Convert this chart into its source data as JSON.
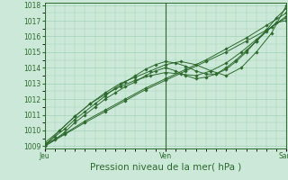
{
  "bg_color": "#cce8d8",
  "grid_color": "#99ccb0",
  "line_color": "#2d6a2d",
  "marker_color": "#2d6a2d",
  "ylabel_min": 1009,
  "ylabel_max": 1018,
  "yticks": [
    1009,
    1010,
    1011,
    1012,
    1013,
    1014,
    1015,
    1016,
    1017,
    1018
  ],
  "xlabel": "Pression niveau de la mer( hPa )",
  "xtick_labels": [
    "Jeu",
    "Ven",
    "Sam"
  ],
  "xtick_positions": [
    0,
    48,
    96
  ],
  "x_total": 96,
  "lines": [
    {
      "x": [
        0,
        8,
        16,
        24,
        32,
        40,
        48,
        56,
        64,
        72,
        80,
        88,
        96
      ],
      "y": [
        1009.0,
        1009.75,
        1010.5,
        1011.2,
        1011.9,
        1012.6,
        1013.2,
        1013.8,
        1014.4,
        1015.0,
        1015.7,
        1016.4,
        1017.2
      ]
    },
    {
      "x": [
        0,
        8,
        16,
        24,
        32,
        40,
        48,
        56,
        64,
        72,
        80,
        88,
        96
      ],
      "y": [
        1009.1,
        1009.8,
        1010.6,
        1011.3,
        1012.0,
        1012.7,
        1013.3,
        1013.9,
        1014.5,
        1015.2,
        1015.9,
        1016.7,
        1017.5
      ]
    },
    {
      "x": [
        0,
        4,
        8,
        12,
        16,
        20,
        24,
        28,
        32,
        36,
        40,
        44,
        48,
        52,
        56,
        60,
        64,
        68,
        72,
        76,
        80,
        84,
        88,
        92,
        96
      ],
      "y": [
        1009.1,
        1009.6,
        1010.1,
        1010.7,
        1011.2,
        1011.7,
        1012.2,
        1012.7,
        1013.1,
        1013.5,
        1013.9,
        1014.2,
        1014.4,
        1014.3,
        1014.1,
        1013.8,
        1013.6,
        1013.6,
        1013.9,
        1014.4,
        1015.0,
        1015.7,
        1016.4,
        1017.2,
        1017.8
      ]
    },
    {
      "x": [
        0,
        4,
        8,
        12,
        16,
        20,
        24,
        28,
        32,
        36,
        40,
        44,
        48,
        52,
        56,
        60,
        64,
        68,
        72,
        76,
        80,
        84,
        88,
        92,
        96
      ],
      "y": [
        1009.0,
        1009.4,
        1009.9,
        1010.5,
        1011.0,
        1011.5,
        1012.0,
        1012.4,
        1012.8,
        1013.1,
        1013.5,
        1013.8,
        1014.0,
        1013.8,
        1013.5,
        1013.3,
        1013.4,
        1013.6,
        1014.0,
        1014.5,
        1015.1,
        1015.7,
        1016.3,
        1016.9,
        1017.0
      ]
    },
    {
      "x": [
        0,
        6,
        12,
        18,
        24,
        30,
        36,
        42,
        48,
        54,
        60,
        66,
        72,
        78,
        84,
        90,
        96
      ],
      "y": [
        1009.0,
        1010.0,
        1010.9,
        1011.7,
        1012.4,
        1013.0,
        1013.4,
        1013.8,
        1014.2,
        1014.4,
        1014.2,
        1013.8,
        1013.5,
        1014.0,
        1015.0,
        1016.2,
        1018.0
      ]
    },
    {
      "x": [
        0,
        6,
        12,
        18,
        24,
        30,
        36,
        42,
        48,
        54,
        60,
        66,
        72,
        78,
        84,
        90,
        96
      ],
      "y": [
        1009.2,
        1010.0,
        1010.9,
        1011.7,
        1012.3,
        1012.8,
        1013.2,
        1013.5,
        1013.7,
        1013.6,
        1013.5,
        1013.8,
        1014.3,
        1015.0,
        1015.8,
        1016.6,
        1017.3
      ]
    }
  ],
  "vlines": [
    0,
    48,
    96
  ],
  "tick_fontsize": 5.5,
  "xlabel_fontsize": 7.5
}
